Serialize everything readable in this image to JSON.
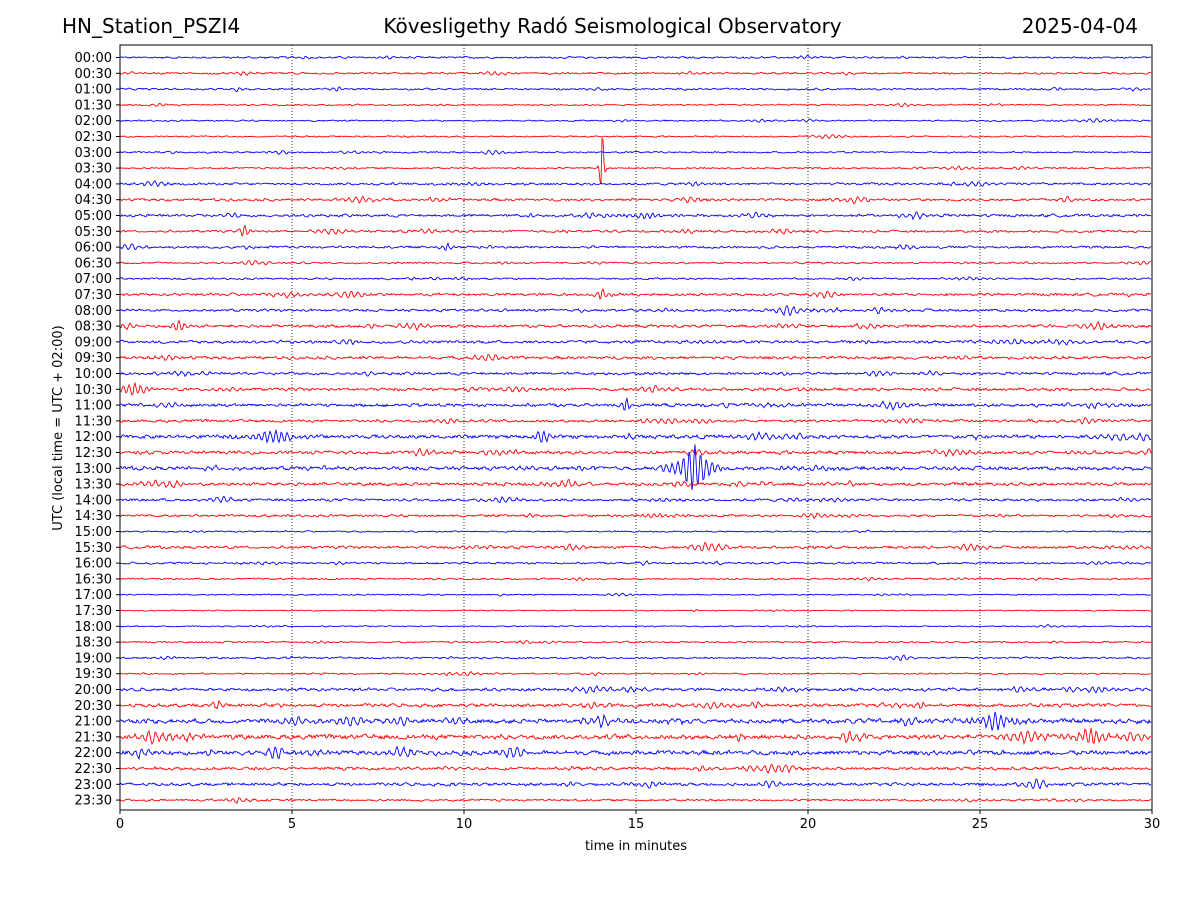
{
  "header": {
    "station": "HN_Station_PSZI4",
    "observatory": "Kövesligethy Radó Seismological Observatory",
    "date": "2025-04-04"
  },
  "chart_data": {
    "type": "line",
    "title": "Kövesligethy Radó Seismological Observatory",
    "xlabel": "time in minutes",
    "ylabel": "UTC (local time = UTC + 02:00)",
    "xlim": [
      0,
      30
    ],
    "xticks": [
      "0",
      "5",
      "10",
      "15",
      "20",
      "25",
      "30"
    ],
    "xtick_values": [
      0,
      5,
      10,
      15,
      20,
      25,
      30
    ],
    "gridlines_x": [
      5,
      10,
      15,
      20,
      25
    ],
    "trace_colors": [
      "#0000ff",
      "#ff0000"
    ],
    "rows": [
      "00:00",
      "00:30",
      "01:00",
      "01:30",
      "02:00",
      "02:30",
      "03:00",
      "03:30",
      "04:00",
      "04:30",
      "05:00",
      "05:30",
      "06:00",
      "06:30",
      "07:00",
      "07:30",
      "08:00",
      "08:30",
      "09:00",
      "09:30",
      "10:00",
      "10:30",
      "11:00",
      "11:30",
      "12:00",
      "12:30",
      "13:00",
      "13:30",
      "14:00",
      "14:30",
      "15:00",
      "15:30",
      "16:00",
      "16:30",
      "17:00",
      "17:30",
      "18:00",
      "18:30",
      "19:00",
      "19:30",
      "20:00",
      "20:30",
      "21:00",
      "21:30",
      "22:00",
      "22:30",
      "23:00",
      "23:30"
    ],
    "noise_level": [
      1,
      1,
      1,
      0.8,
      0.8,
      0.8,
      0.9,
      0.9,
      1.3,
      1.4,
      1.5,
      1.3,
      1.3,
      1,
      1,
      1.5,
      1.4,
      1.6,
      1.6,
      1.6,
      1.5,
      1.6,
      1.8,
      1.5,
      2,
      1.8,
      2,
      1.8,
      1.4,
      1.3,
      0.8,
      1.5,
      1.1,
      0.9,
      0.7,
      0.6,
      0.6,
      0.9,
      1,
      0.8,
      1.7,
      1.8,
      2.5,
      2.6,
      2.4,
      1.6,
      1.6,
      1.2
    ],
    "events": [
      {
        "row": 7,
        "minute": 14.0,
        "amplitude": 60,
        "duration_min": 0.05,
        "note": "large spike"
      },
      {
        "row": 10,
        "minute": 15.3,
        "amplitude": 3,
        "duration_min": 1.5
      },
      {
        "row": 11,
        "minute": 3.6,
        "amplitude": 7,
        "duration_min": 0.3
      },
      {
        "row": 12,
        "minute": 9.5,
        "amplitude": 4,
        "duration_min": 0.5
      },
      {
        "row": 15,
        "minute": 14.0,
        "amplitude": 6,
        "duration_min": 0.5
      },
      {
        "row": 17,
        "minute": 1.7,
        "amplitude": 7,
        "duration_min": 0.4
      },
      {
        "row": 21,
        "minute": 0.4,
        "amplitude": 6,
        "duration_min": 1.2
      },
      {
        "row": 22,
        "minute": 14.7,
        "amplitude": 10,
        "duration_min": 0.3
      },
      {
        "row": 24,
        "minute": 4.5,
        "amplitude": 7,
        "duration_min": 1.5
      },
      {
        "row": 24,
        "minute": 12.3,
        "amplitude": 8,
        "duration_min": 0.5
      },
      {
        "row": 26,
        "minute": 16.7,
        "amplitude": 26,
        "duration_min": 1.0
      },
      {
        "row": 29,
        "minute": 15.5,
        "amplitude": 2,
        "duration_min": 2.0
      },
      {
        "row": 42,
        "minute": 25.4,
        "amplitude": 8,
        "duration_min": 1.5
      },
      {
        "row": 43,
        "minute": 28.2,
        "amplitude": 8,
        "duration_min": 1.0
      }
    ]
  }
}
